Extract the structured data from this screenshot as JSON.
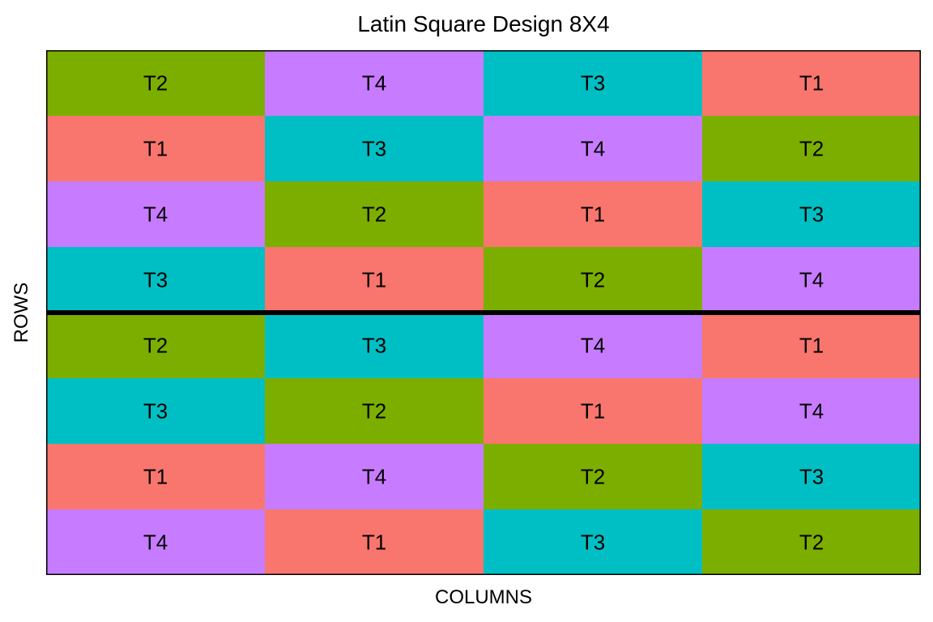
{
  "chart_data": {
    "type": "heatmap",
    "title": "Latin Square Design 8X4",
    "xlabel": "COLUMNS",
    "ylabel": "ROWS",
    "n_rows": 8,
    "n_cols": 4,
    "block_separator_after_row": 4,
    "grid": false,
    "legend": "none",
    "treatment_colors": {
      "T1": "#F8766D",
      "T2": "#7CAE00",
      "T3": "#00BFC4",
      "T4": "#C77CFF"
    },
    "rows": [
      [
        "T2",
        "T4",
        "T3",
        "T1"
      ],
      [
        "T1",
        "T3",
        "T4",
        "T2"
      ],
      [
        "T4",
        "T2",
        "T1",
        "T3"
      ],
      [
        "T3",
        "T1",
        "T2",
        "T4"
      ],
      [
        "T2",
        "T3",
        "T4",
        "T1"
      ],
      [
        "T3",
        "T2",
        "T1",
        "T4"
      ],
      [
        "T1",
        "T4",
        "T2",
        "T3"
      ],
      [
        "T4",
        "T1",
        "T3",
        "T2"
      ]
    ]
  }
}
